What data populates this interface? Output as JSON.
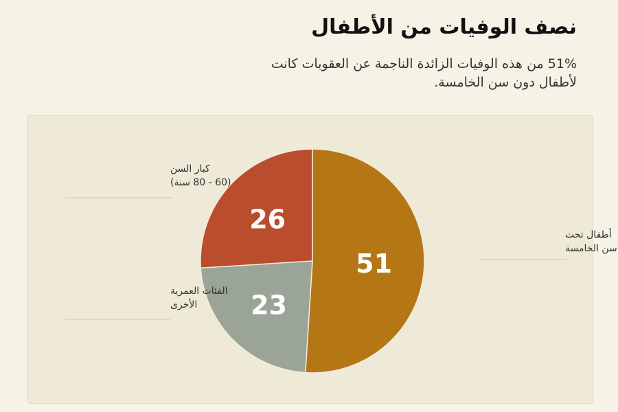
{
  "header": {
    "title": "نصف الوفيات من الأطفال",
    "subtitle": "51% من هذه الوفيات الزائدة الناجمة عن العقوبات كانت لأطفال دون سن الخامسة."
  },
  "chart_data": {
    "type": "pie",
    "title": "نصف الوفيات من الأطفال",
    "slices": [
      {
        "label": "أطفال تحت سن الخامسة",
        "label_lines": [
          "أطفال تحت",
          "سن الخامسة"
        ],
        "value": 51,
        "display": "51",
        "color": "#b57616"
      },
      {
        "label": "الفئات العمرية الأخرى",
        "label_lines": [
          "الفئات العمرية",
          "الأخرى"
        ],
        "value": 23,
        "display": "23",
        "color": "#9aa597"
      },
      {
        "label": "كبار السن (60 - 80 سنة)",
        "label_lines": [
          "كبار السن",
          "(60 - 80 سنة)"
        ],
        "value": 26,
        "display": "26",
        "color": "#ba4d2d"
      }
    ]
  }
}
